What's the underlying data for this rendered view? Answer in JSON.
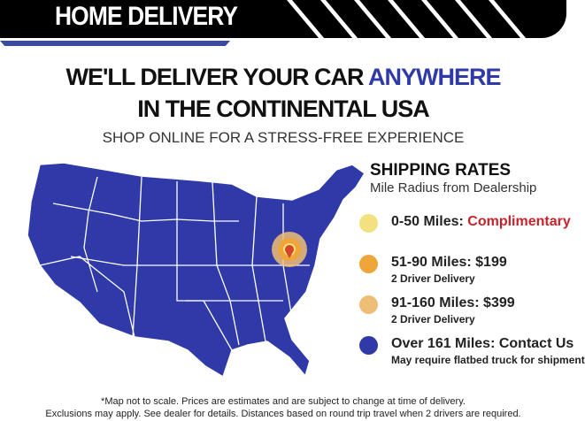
{
  "header": {
    "title": "HOME DELIVERY"
  },
  "headline": {
    "line1_prefix": "WE'LL DELIVER YOUR CAR ",
    "line1_accent": "ANYWHERE",
    "line2": "IN THE CONTINENTAL USA"
  },
  "subheadline": "SHOP ONLINE FOR A STRESS-FREE EXPERIENCE",
  "rates": {
    "title": "SHIPPING RATES",
    "subtitle": "Mile Radius from Dealership",
    "items": [
      {
        "label": "0-50 Miles: ",
        "value": "Complimentary",
        "note": "",
        "color": "#f3e07e"
      },
      {
        "label": "51-90 Miles: $199",
        "value": "",
        "note": "2 Driver Delivery",
        "color": "#eea63a"
      },
      {
        "label": "91-160 Miles: $399",
        "value": "",
        "note": "2 Driver Delivery",
        "color": "#eebe76"
      },
      {
        "label": "Over 161 Miles: Contact Us",
        "value": "",
        "note": "May require flatbed truck for shipment",
        "color": "#2f3aa8"
      }
    ]
  },
  "colors": {
    "map": "#2f3aa8",
    "accent": "#2f3aa8",
    "red": "#c8232c"
  },
  "footer": {
    "line1": "*Map not to scale. Prices are estimates and are subject to change at time of delivery.",
    "line2": "Exclusions may apply. See dealer for details. Distances based on round trip travel when 2 drivers are required."
  }
}
